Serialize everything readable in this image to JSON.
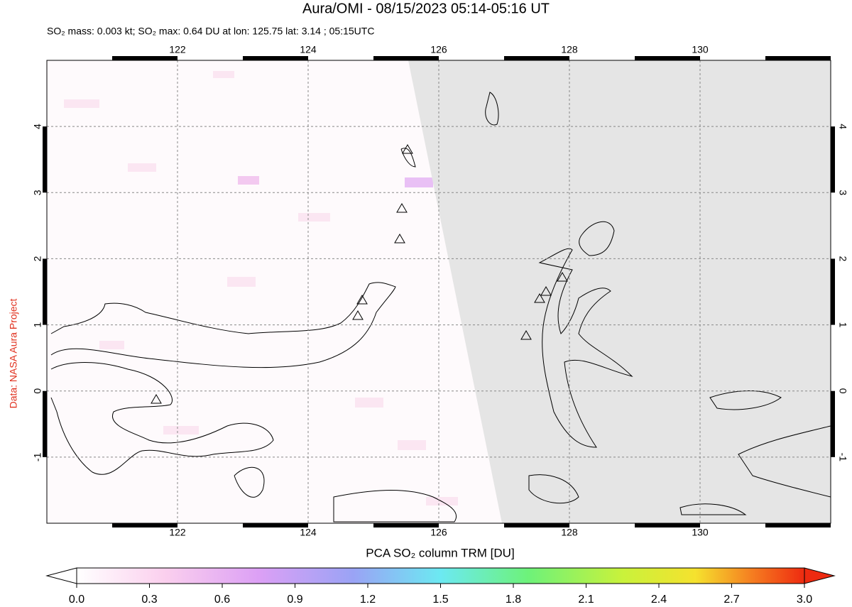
{
  "header": {
    "title": "Aura/OMI - 08/15/2023 05:14-05:16 UT",
    "subtitle": "SO₂ mass: 0.003 kt; SO₂ max: 0.64 DU at lon: 125.75 lat: 3.14 ; 05:15UTC"
  },
  "map": {
    "lon_range": [
      120,
      132
    ],
    "lat_range": [
      -2,
      5
    ],
    "lon_ticks": [
      122,
      124,
      126,
      128,
      130
    ],
    "lat_ticks": [
      4,
      3,
      2,
      1,
      0,
      -1
    ]
  },
  "colorbar": {
    "label": "PCA SO₂ column TRM [DU]",
    "range": [
      0,
      3
    ],
    "ticks": [
      {
        "value": 0,
        "label": "0.0"
      },
      {
        "value": 0.3,
        "label": "0.3"
      },
      {
        "value": 0.6,
        "label": "0.6"
      },
      {
        "value": 0.9,
        "label": "0.9"
      },
      {
        "value": 1.2,
        "label": "1.2"
      },
      {
        "value": 1.5,
        "label": "1.5"
      },
      {
        "value": 1.8,
        "label": "1.8"
      },
      {
        "value": 2.1,
        "label": "2.1"
      },
      {
        "value": 2.4,
        "label": "2.4"
      },
      {
        "value": 2.7,
        "label": "2.7"
      },
      {
        "value": 3,
        "label": "3.0"
      }
    ]
  },
  "credit": "Data: NASA Aura Project"
}
